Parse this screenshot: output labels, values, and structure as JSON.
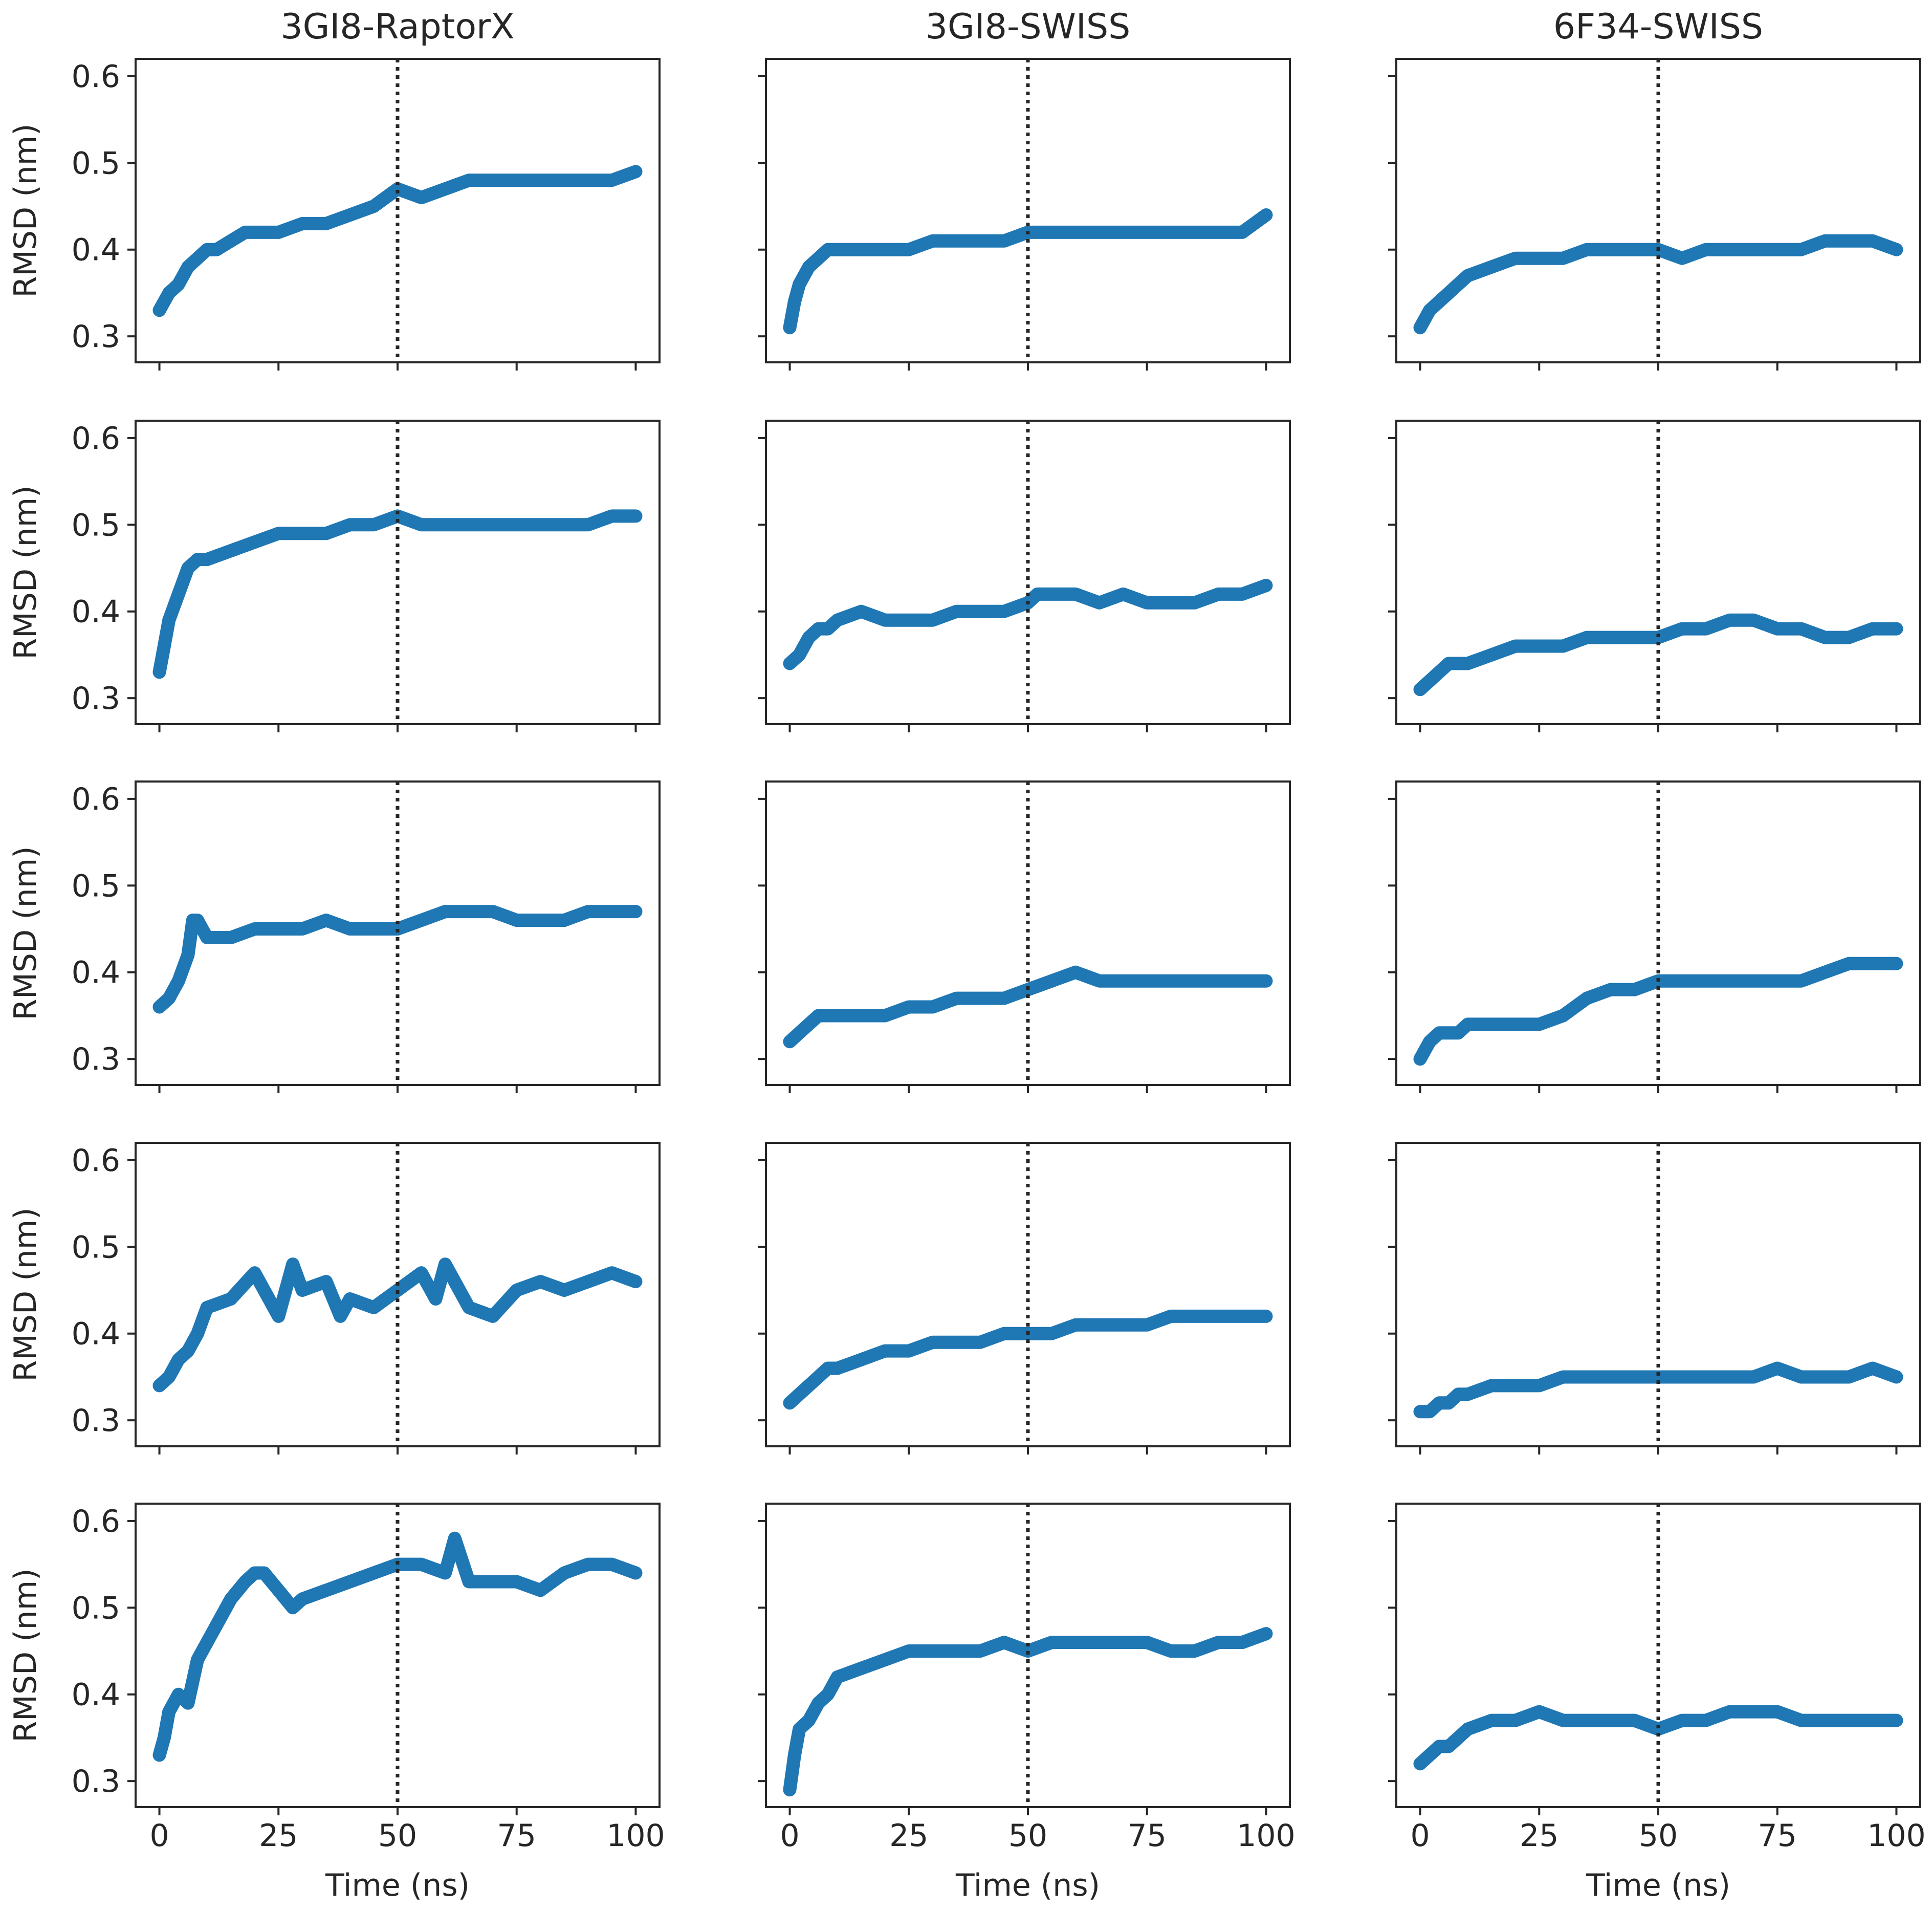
{
  "figure": {
    "columns": [
      "3GI8-RaptorX",
      "3GI8-SWISS",
      "6F34-SWISS"
    ],
    "xlabel": "Time (ns)",
    "ylabel": "RMSD (nm)",
    "colors": {
      "series": "#1f77b4",
      "reference_line": "#262626",
      "axes": "#262626"
    }
  },
  "chart_data": [
    {
      "type": "line",
      "row": 1,
      "col": 1,
      "xlabel": "",
      "ylabel": "RMSD (nm)",
      "xlim": [
        -5,
        105
      ],
      "ylim": [
        0.27,
        0.62
      ],
      "xticks": [
        0,
        25,
        50,
        75,
        100
      ],
      "yticks": [
        0.3,
        0.4,
        0.5,
        0.6
      ],
      "reference_x": 50,
      "reference_style": "dotted",
      "x": [
        0,
        2,
        4,
        6,
        8,
        10,
        12,
        15,
        18,
        20,
        25,
        30,
        35,
        40,
        45,
        50,
        55,
        60,
        65,
        70,
        75,
        80,
        85,
        90,
        95,
        100
      ],
      "series": [
        {
          "values": [
            0.33,
            0.35,
            0.36,
            0.38,
            0.39,
            0.4,
            0.4,
            0.41,
            0.42,
            0.42,
            0.42,
            0.43,
            0.43,
            0.44,
            0.45,
            0.47,
            0.46,
            0.47,
            0.48,
            0.48,
            0.48,
            0.48,
            0.48,
            0.48,
            0.48,
            0.49
          ]
        }
      ]
    },
    {
      "type": "line",
      "row": 1,
      "col": 2,
      "xlabel": "",
      "ylabel": "",
      "xlim": [
        -5,
        105
      ],
      "ylim": [
        0.27,
        0.62
      ],
      "xticks": [
        0,
        25,
        50,
        75,
        100
      ],
      "yticks": [
        0.3,
        0.4,
        0.5,
        0.6
      ],
      "reference_x": 50,
      "reference_style": "dotted",
      "x": [
        0,
        1,
        2,
        4,
        6,
        8,
        10,
        15,
        20,
        25,
        30,
        35,
        40,
        45,
        50,
        55,
        60,
        65,
        70,
        75,
        80,
        85,
        90,
        95,
        100
      ],
      "series": [
        {
          "values": [
            0.31,
            0.34,
            0.36,
            0.38,
            0.39,
            0.4,
            0.4,
            0.4,
            0.4,
            0.4,
            0.41,
            0.41,
            0.41,
            0.41,
            0.42,
            0.42,
            0.42,
            0.42,
            0.42,
            0.42,
            0.42,
            0.42,
            0.42,
            0.42,
            0.44
          ]
        }
      ]
    },
    {
      "type": "line",
      "row": 1,
      "col": 3,
      "xlabel": "",
      "ylabel": "",
      "xlim": [
        -5,
        105
      ],
      "ylim": [
        0.27,
        0.62
      ],
      "xticks": [
        0,
        25,
        50,
        75,
        100
      ],
      "yticks": [
        0.3,
        0.4,
        0.5,
        0.6
      ],
      "reference_x": 50,
      "reference_style": "dotted",
      "x": [
        0,
        2,
        4,
        6,
        8,
        10,
        15,
        20,
        25,
        30,
        35,
        40,
        45,
        50,
        55,
        60,
        65,
        70,
        75,
        80,
        85,
        90,
        95,
        100
      ],
      "series": [
        {
          "values": [
            0.31,
            0.33,
            0.34,
            0.35,
            0.36,
            0.37,
            0.38,
            0.39,
            0.39,
            0.39,
            0.4,
            0.4,
            0.4,
            0.4,
            0.39,
            0.4,
            0.4,
            0.4,
            0.4,
            0.4,
            0.41,
            0.41,
            0.41,
            0.4
          ]
        }
      ]
    },
    {
      "type": "line",
      "row": 2,
      "col": 1,
      "xlabel": "",
      "ylabel": "RMSD (nm)",
      "xlim": [
        -5,
        105
      ],
      "ylim": [
        0.27,
        0.62
      ],
      "xticks": [
        0,
        25,
        50,
        75,
        100
      ],
      "yticks": [
        0.3,
        0.4,
        0.5,
        0.6
      ],
      "reference_x": 50,
      "reference_style": "dotted",
      "x": [
        0,
        1,
        2,
        4,
        6,
        8,
        10,
        15,
        20,
        25,
        30,
        35,
        40,
        45,
        50,
        55,
        60,
        65,
        70,
        75,
        80,
        85,
        90,
        95,
        100
      ],
      "series": [
        {
          "values": [
            0.33,
            0.36,
            0.39,
            0.42,
            0.45,
            0.46,
            0.46,
            0.47,
            0.48,
            0.49,
            0.49,
            0.49,
            0.5,
            0.5,
            0.51,
            0.5,
            0.5,
            0.5,
            0.5,
            0.5,
            0.5,
            0.5,
            0.5,
            0.51,
            0.51
          ]
        }
      ]
    },
    {
      "type": "line",
      "row": 2,
      "col": 2,
      "xlabel": "",
      "ylabel": "",
      "xlim": [
        -5,
        105
      ],
      "ylim": [
        0.27,
        0.62
      ],
      "xticks": [
        0,
        25,
        50,
        75,
        100
      ],
      "yticks": [
        0.3,
        0.4,
        0.5,
        0.6
      ],
      "reference_x": 50,
      "reference_style": "dotted",
      "x": [
        0,
        2,
        4,
        6,
        8,
        10,
        15,
        20,
        25,
        30,
        35,
        40,
        45,
        50,
        52,
        55,
        60,
        65,
        70,
        75,
        80,
        85,
        90,
        95,
        100
      ],
      "series": [
        {
          "values": [
            0.34,
            0.35,
            0.37,
            0.38,
            0.38,
            0.39,
            0.4,
            0.39,
            0.39,
            0.39,
            0.4,
            0.4,
            0.4,
            0.41,
            0.42,
            0.42,
            0.42,
            0.41,
            0.42,
            0.41,
            0.41,
            0.41,
            0.42,
            0.42,
            0.43
          ]
        }
      ]
    },
    {
      "type": "line",
      "row": 2,
      "col": 3,
      "xlabel": "",
      "ylabel": "",
      "xlim": [
        -5,
        105
      ],
      "ylim": [
        0.27,
        0.62
      ],
      "xticks": [
        0,
        25,
        50,
        75,
        100
      ],
      "yticks": [
        0.3,
        0.4,
        0.5,
        0.6
      ],
      "reference_x": 50,
      "reference_style": "dotted",
      "x": [
        0,
        2,
        4,
        6,
        8,
        10,
        15,
        20,
        25,
        30,
        35,
        40,
        45,
        50,
        55,
        60,
        65,
        70,
        75,
        80,
        85,
        90,
        95,
        100
      ],
      "series": [
        {
          "values": [
            0.31,
            0.32,
            0.33,
            0.34,
            0.34,
            0.34,
            0.35,
            0.36,
            0.36,
            0.36,
            0.37,
            0.37,
            0.37,
            0.37,
            0.38,
            0.38,
            0.39,
            0.39,
            0.38,
            0.38,
            0.37,
            0.37,
            0.38,
            0.38
          ]
        }
      ]
    },
    {
      "type": "line",
      "row": 3,
      "col": 1,
      "xlabel": "",
      "ylabel": "RMSD (nm)",
      "xlim": [
        -5,
        105
      ],
      "ylim": [
        0.27,
        0.62
      ],
      "xticks": [
        0,
        25,
        50,
        75,
        100
      ],
      "yticks": [
        0.3,
        0.4,
        0.5,
        0.6
      ],
      "reference_x": 50,
      "reference_style": "dotted",
      "x": [
        0,
        2,
        4,
        6,
        7,
        8,
        10,
        15,
        20,
        25,
        30,
        35,
        40,
        45,
        50,
        55,
        60,
        65,
        70,
        75,
        80,
        85,
        90,
        95,
        100
      ],
      "series": [
        {
          "values": [
            0.36,
            0.37,
            0.39,
            0.42,
            0.46,
            0.46,
            0.44,
            0.44,
            0.45,
            0.45,
            0.45,
            0.46,
            0.45,
            0.45,
            0.45,
            0.46,
            0.47,
            0.47,
            0.47,
            0.46,
            0.46,
            0.46,
            0.47,
            0.47,
            0.47
          ]
        }
      ]
    },
    {
      "type": "line",
      "row": 3,
      "col": 2,
      "xlabel": "",
      "ylabel": "",
      "xlim": [
        -5,
        105
      ],
      "ylim": [
        0.27,
        0.62
      ],
      "xticks": [
        0,
        25,
        50,
        75,
        100
      ],
      "yticks": [
        0.3,
        0.4,
        0.5,
        0.6
      ],
      "reference_x": 50,
      "reference_style": "dotted",
      "x": [
        0,
        2,
        4,
        6,
        8,
        10,
        15,
        20,
        25,
        30,
        35,
        40,
        45,
        50,
        55,
        60,
        65,
        70,
        75,
        80,
        85,
        90,
        95,
        100
      ],
      "series": [
        {
          "values": [
            0.32,
            0.33,
            0.34,
            0.35,
            0.35,
            0.35,
            0.35,
            0.35,
            0.36,
            0.36,
            0.37,
            0.37,
            0.37,
            0.38,
            0.39,
            0.4,
            0.39,
            0.39,
            0.39,
            0.39,
            0.39,
            0.39,
            0.39,
            0.39
          ]
        }
      ]
    },
    {
      "type": "line",
      "row": 3,
      "col": 3,
      "xlabel": "",
      "ylabel": "",
      "xlim": [
        -5,
        105
      ],
      "ylim": [
        0.27,
        0.62
      ],
      "xticks": [
        0,
        25,
        50,
        75,
        100
      ],
      "yticks": [
        0.3,
        0.4,
        0.5,
        0.6
      ],
      "reference_x": 50,
      "reference_style": "dotted",
      "x": [
        0,
        2,
        4,
        6,
        8,
        10,
        15,
        20,
        25,
        30,
        35,
        40,
        45,
        50,
        55,
        60,
        65,
        70,
        75,
        80,
        85,
        90,
        95,
        100
      ],
      "series": [
        {
          "values": [
            0.3,
            0.32,
            0.33,
            0.33,
            0.33,
            0.34,
            0.34,
            0.34,
            0.34,
            0.35,
            0.37,
            0.38,
            0.38,
            0.39,
            0.39,
            0.39,
            0.39,
            0.39,
            0.39,
            0.39,
            0.4,
            0.41,
            0.41,
            0.41
          ]
        }
      ]
    },
    {
      "type": "line",
      "row": 4,
      "col": 1,
      "xlabel": "",
      "ylabel": "RMSD (nm)",
      "xlim": [
        -5,
        105
      ],
      "ylim": [
        0.27,
        0.62
      ],
      "xticks": [
        0,
        25,
        50,
        75,
        100
      ],
      "yticks": [
        0.3,
        0.4,
        0.5,
        0.6
      ],
      "reference_x": 50,
      "reference_style": "dotted",
      "x": [
        0,
        2,
        4,
        6,
        8,
        10,
        15,
        20,
        22,
        25,
        28,
        30,
        35,
        38,
        40,
        45,
        50,
        55,
        58,
        60,
        65,
        70,
        75,
        80,
        85,
        90,
        95,
        100
      ],
      "series": [
        {
          "values": [
            0.34,
            0.35,
            0.37,
            0.38,
            0.4,
            0.43,
            0.44,
            0.47,
            0.45,
            0.42,
            0.48,
            0.45,
            0.46,
            0.42,
            0.44,
            0.43,
            0.45,
            0.47,
            0.44,
            0.48,
            0.43,
            0.42,
            0.45,
            0.46,
            0.45,
            0.46,
            0.47,
            0.46
          ]
        }
      ]
    },
    {
      "type": "line",
      "row": 4,
      "col": 2,
      "xlabel": "",
      "ylabel": "",
      "xlim": [
        -5,
        105
      ],
      "ylim": [
        0.27,
        0.62
      ],
      "xticks": [
        0,
        25,
        50,
        75,
        100
      ],
      "yticks": [
        0.3,
        0.4,
        0.5,
        0.6
      ],
      "reference_x": 50,
      "reference_style": "dotted",
      "x": [
        0,
        2,
        4,
        6,
        8,
        10,
        15,
        20,
        25,
        30,
        35,
        40,
        45,
        50,
        55,
        60,
        65,
        70,
        75,
        80,
        85,
        90,
        95,
        100
      ],
      "series": [
        {
          "values": [
            0.32,
            0.33,
            0.34,
            0.35,
            0.36,
            0.36,
            0.37,
            0.38,
            0.38,
            0.39,
            0.39,
            0.39,
            0.4,
            0.4,
            0.4,
            0.41,
            0.41,
            0.41,
            0.41,
            0.42,
            0.42,
            0.42,
            0.42,
            0.42
          ]
        }
      ]
    },
    {
      "type": "line",
      "row": 4,
      "col": 3,
      "xlabel": "",
      "ylabel": "",
      "xlim": [
        -5,
        105
      ],
      "ylim": [
        0.27,
        0.62
      ],
      "xticks": [
        0,
        25,
        50,
        75,
        100
      ],
      "yticks": [
        0.3,
        0.4,
        0.5,
        0.6
      ],
      "reference_x": 50,
      "reference_style": "dotted",
      "x": [
        0,
        2,
        4,
        6,
        8,
        10,
        15,
        20,
        25,
        30,
        35,
        40,
        45,
        50,
        55,
        60,
        65,
        70,
        75,
        80,
        85,
        90,
        95,
        100
      ],
      "series": [
        {
          "values": [
            0.31,
            0.31,
            0.32,
            0.32,
            0.33,
            0.33,
            0.34,
            0.34,
            0.34,
            0.35,
            0.35,
            0.35,
            0.35,
            0.35,
            0.35,
            0.35,
            0.35,
            0.35,
            0.36,
            0.35,
            0.35,
            0.35,
            0.36,
            0.35
          ]
        }
      ]
    },
    {
      "type": "line",
      "row": 5,
      "col": 1,
      "xlabel": "Time (ns)",
      "ylabel": "RMSD (nm)",
      "xlim": [
        -5,
        105
      ],
      "ylim": [
        0.27,
        0.62
      ],
      "xticks": [
        0,
        25,
        50,
        75,
        100
      ],
      "yticks": [
        0.3,
        0.4,
        0.5,
        0.6
      ],
      "reference_x": 50,
      "reference_style": "dotted",
      "x": [
        0,
        1,
        2,
        4,
        6,
        8,
        10,
        12,
        15,
        18,
        20,
        22,
        25,
        28,
        30,
        35,
        40,
        45,
        50,
        55,
        60,
        62,
        65,
        70,
        75,
        80,
        85,
        90,
        95,
        100
      ],
      "series": [
        {
          "values": [
            0.33,
            0.35,
            0.38,
            0.4,
            0.39,
            0.44,
            0.46,
            0.48,
            0.51,
            0.53,
            0.54,
            0.54,
            0.52,
            0.5,
            0.51,
            0.52,
            0.53,
            0.54,
            0.55,
            0.55,
            0.54,
            0.58,
            0.53,
            0.53,
            0.53,
            0.52,
            0.54,
            0.55,
            0.55,
            0.54
          ]
        }
      ]
    },
    {
      "type": "line",
      "row": 5,
      "col": 2,
      "xlabel": "Time (ns)",
      "ylabel": "",
      "xlim": [
        -5,
        105
      ],
      "ylim": [
        0.27,
        0.62
      ],
      "xticks": [
        0,
        25,
        50,
        75,
        100
      ],
      "yticks": [
        0.3,
        0.4,
        0.5,
        0.6
      ],
      "reference_x": 50,
      "reference_style": "dotted",
      "x": [
        0,
        1,
        2,
        4,
        6,
        8,
        10,
        15,
        20,
        25,
        30,
        35,
        40,
        45,
        50,
        55,
        60,
        65,
        70,
        75,
        80,
        85,
        90,
        95,
        100
      ],
      "series": [
        {
          "values": [
            0.29,
            0.33,
            0.36,
            0.37,
            0.39,
            0.4,
            0.42,
            0.43,
            0.44,
            0.45,
            0.45,
            0.45,
            0.45,
            0.46,
            0.45,
            0.46,
            0.46,
            0.46,
            0.46,
            0.46,
            0.45,
            0.45,
            0.46,
            0.46,
            0.47
          ]
        }
      ]
    },
    {
      "type": "line",
      "row": 5,
      "col": 3,
      "xlabel": "Time (ns)",
      "ylabel": "",
      "xlim": [
        -5,
        105
      ],
      "ylim": [
        0.27,
        0.62
      ],
      "xticks": [
        0,
        25,
        50,
        75,
        100
      ],
      "yticks": [
        0.3,
        0.4,
        0.5,
        0.6
      ],
      "reference_x": 50,
      "reference_style": "dotted",
      "x": [
        0,
        2,
        4,
        6,
        8,
        10,
        15,
        20,
        25,
        30,
        35,
        40,
        45,
        50,
        55,
        60,
        65,
        70,
        75,
        80,
        85,
        90,
        95,
        100
      ],
      "series": [
        {
          "values": [
            0.32,
            0.33,
            0.34,
            0.34,
            0.35,
            0.36,
            0.37,
            0.37,
            0.38,
            0.37,
            0.37,
            0.37,
            0.37,
            0.36,
            0.37,
            0.37,
            0.38,
            0.38,
            0.38,
            0.37,
            0.37,
            0.37,
            0.37,
            0.37
          ]
        }
      ]
    }
  ]
}
